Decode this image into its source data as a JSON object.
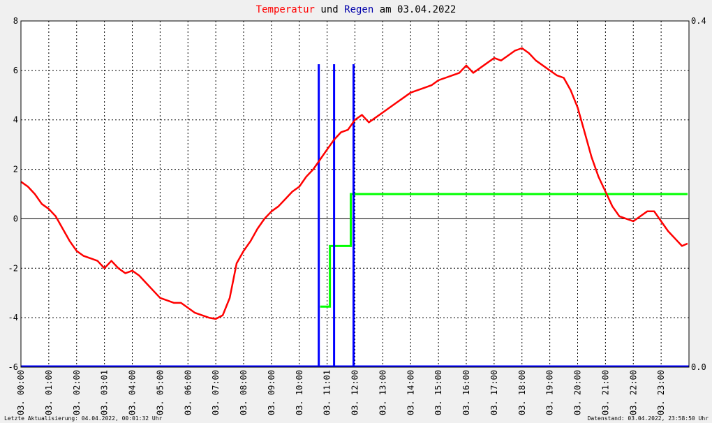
{
  "chart_data": {
    "type": "line",
    "title": {
      "temperature_word": "Temperatur",
      "and_word": "und",
      "rain_word": "Regen",
      "date_prefix": "am 03.04.2022"
    },
    "colors": {
      "temperature": "#ff0000",
      "rain": "#0000ff",
      "rain_total": "#00ff00",
      "background": "#f0f0f0",
      "plot_background": "#ffffff"
    },
    "x_unit": "hours",
    "xlim": [
      0,
      24
    ],
    "ylim_left": [
      -6,
      8
    ],
    "ylim_right": [
      0.0,
      0.4
    ],
    "yticks_left": [
      "8",
      "6",
      "4",
      "2",
      "0",
      "-2",
      "-4",
      "-6"
    ],
    "yticks_right": [
      "0.4",
      "0.0"
    ],
    "xtick_labels": [
      "03. 00:00",
      "03. 01:00",
      "03. 02:00",
      "03. 03:01",
      "03. 04:00",
      "03. 05:00",
      "03. 06:00",
      "03. 07:00",
      "03. 08:00",
      "03. 09:00",
      "03. 10:00",
      "03. 11:01",
      "03. 12:00",
      "03. 13:00",
      "03. 14:00",
      "03. 15:00",
      "03. 16:00",
      "03. 17:00",
      "03. 18:00",
      "03. 19:00",
      "03. 20:00",
      "03. 21:00",
      "03. 22:00",
      "03. 23:00"
    ],
    "grid": true,
    "series": [
      {
        "axis": "left",
        "color": "#ff0000",
        "x": [
          0.0,
          0.25,
          0.5,
          0.75,
          1.0,
          1.25,
          1.5,
          1.75,
          2.0,
          2.25,
          2.5,
          2.75,
          3.0,
          3.25,
          3.5,
          3.75,
          4.0,
          4.25,
          4.5,
          4.75,
          5.0,
          5.25,
          5.5,
          5.75,
          6.0,
          6.25,
          6.5,
          6.75,
          7.0,
          7.25,
          7.5,
          7.75,
          8.0,
          8.25,
          8.5,
          8.75,
          9.0,
          9.25,
          9.5,
          9.75,
          10.0,
          10.25,
          10.5,
          10.75,
          11.0,
          11.25,
          11.5,
          11.75,
          12.0,
          12.25,
          12.5,
          12.75,
          13.0,
          13.25,
          13.5,
          13.75,
          14.0,
          14.25,
          14.5,
          14.75,
          15.0,
          15.25,
          15.5,
          15.75,
          16.0,
          16.25,
          16.5,
          16.75,
          17.0,
          17.25,
          17.5,
          17.75,
          18.0,
          18.25,
          18.5,
          18.75,
          19.0,
          19.25,
          19.5,
          19.75,
          20.0,
          20.25,
          20.5,
          20.75,
          21.0,
          21.25,
          21.5,
          21.75,
          22.0,
          22.25,
          22.5,
          22.75,
          23.0,
          23.25,
          23.5,
          23.75,
          23.95
        ],
        "y": [
          1.5,
          1.3,
          1.0,
          0.6,
          0.4,
          0.1,
          -0.4,
          -0.9,
          -1.3,
          -1.5,
          -1.6,
          -1.7,
          -2.0,
          -1.7,
          -2.0,
          -2.2,
          -2.1,
          -2.3,
          -2.6,
          -2.9,
          -3.2,
          -3.3,
          -3.4,
          -3.4,
          -3.6,
          -3.8,
          -3.9,
          -4.0,
          -4.05,
          -3.9,
          -3.2,
          -1.8,
          -1.3,
          -0.9,
          -0.4,
          0.0,
          0.3,
          0.5,
          0.8,
          1.1,
          1.3,
          1.7,
          2.0,
          2.4,
          2.8,
          3.2,
          3.5,
          3.6,
          4.0,
          4.2,
          3.9,
          4.1,
          4.3,
          4.5,
          4.7,
          4.9,
          5.1,
          5.2,
          5.3,
          5.4,
          5.6,
          5.7,
          5.8,
          5.9,
          6.2,
          5.9,
          6.1,
          6.3,
          6.5,
          6.4,
          6.6,
          6.8,
          6.9,
          6.7,
          6.4,
          6.2,
          6.0,
          5.8,
          5.7,
          5.2,
          4.5,
          3.5,
          2.5,
          1.7,
          1.1,
          0.5,
          0.1,
          0.0,
          -0.1,
          0.1,
          0.3,
          0.3,
          -0.1,
          -0.5,
          -0.8,
          -1.1,
          -1.0
        ]
      },
      {
        "axis": "right",
        "color": "#00ff00",
        "x": [
          10.75,
          11.1,
          11.1,
          11.85,
          11.85,
          23.95
        ],
        "y": [
          0.07,
          0.07,
          0.14,
          0.14,
          0.2,
          0.2
        ]
      }
    ],
    "rain_bars": {
      "axis": "right",
      "color": "#0000ff",
      "x": [
        10.7,
        11.25,
        11.95
      ],
      "values": [
        0.35,
        0.35,
        0.35
      ]
    }
  },
  "footer": {
    "left": "Letzte Aktualisierung: 04.04.2022, 00:01:32 Uhr",
    "right": "Datenstand: 03.04.2022, 23:58:50 Uhr"
  }
}
